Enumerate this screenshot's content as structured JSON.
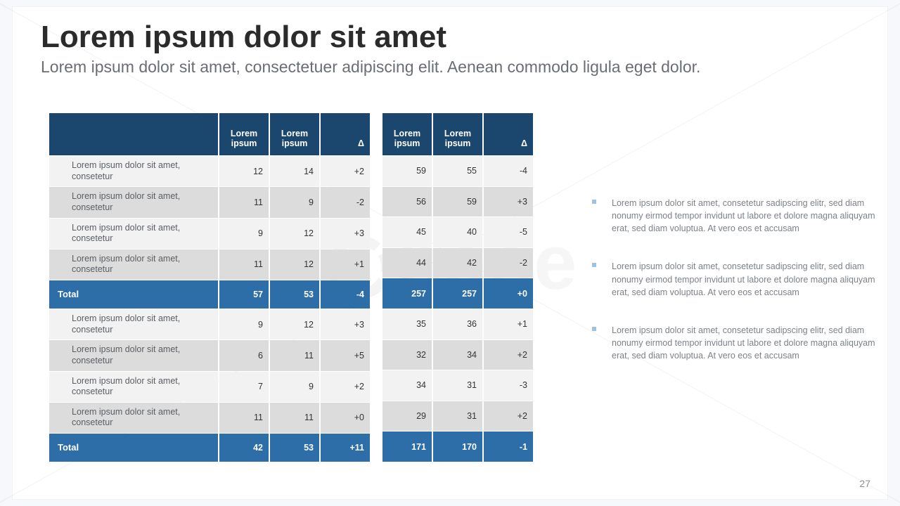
{
  "title": "Lorem ipsum dolor sit amet",
  "subtitle": "Lorem ipsum dolor sit amet, consectetuer adipiscing elit. Aenean commodo ligula eget dolor.",
  "page_number": "27",
  "colors": {
    "header_bg": "#1b476f",
    "total_bg": "#2d6da8",
    "row_light": "#f2f2f2",
    "row_dark": "#dcdcdc",
    "bullet": "#9cc3e3",
    "text_body": "#7d8287"
  },
  "table": {
    "headers_left": [
      "",
      "Lorem ipsum",
      "Lorem ipsum",
      "Δ"
    ],
    "headers_right": [
      "Lorem ipsum",
      "Lorem ipsum",
      "Δ"
    ],
    "row_label": "Lorem ipsum dolor sit amet, consetetur",
    "section1": {
      "rows": [
        {
          "l": [
            12,
            14,
            "+2"
          ],
          "r": [
            59,
            55,
            "-4"
          ]
        },
        {
          "l": [
            11,
            9,
            "-2"
          ],
          "r": [
            56,
            59,
            "+3"
          ]
        },
        {
          "l": [
            9,
            12,
            "+3"
          ],
          "r": [
            45,
            40,
            "-5"
          ]
        },
        {
          "l": [
            11,
            12,
            "+1"
          ],
          "r": [
            44,
            42,
            "-2"
          ]
        }
      ],
      "total_label": "Total",
      "total": {
        "l": [
          57,
          53,
          "-4"
        ],
        "r": [
          257,
          257,
          "+0"
        ]
      }
    },
    "section2": {
      "rows": [
        {
          "l": [
            9,
            12,
            "+3"
          ],
          "r": [
            35,
            36,
            "+1"
          ]
        },
        {
          "l": [
            6,
            11,
            "+5"
          ],
          "r": [
            32,
            34,
            "+2"
          ]
        },
        {
          "l": [
            7,
            9,
            "+2"
          ],
          "r": [
            34,
            31,
            "-3"
          ]
        },
        {
          "l": [
            11,
            11,
            "+0"
          ],
          "r": [
            29,
            31,
            "+2"
          ]
        }
      ],
      "total_label": "Total",
      "total": {
        "l": [
          42,
          53,
          "+11"
        ],
        "r": [
          171,
          170,
          "-1"
        ]
      }
    }
  },
  "side_notes": [
    "Lorem ipsum dolor sit amet, consetetur sadipscing elitr, sed diam nonumy eirmod tempor invidunt ut labore et dolore magna aliquyam erat, sed diam voluptua. At vero eos et accusam",
    "Lorem ipsum dolor sit amet, consetetur sadipscing elitr, sed diam nonumy eirmod tempor invidunt ut labore et dolore magna aliquyam erat, sed diam voluptua. At vero eos et accusam",
    "Lorem ipsum dolor sit amet, consetetur sadipscing elitr, sed diam nonumy eirmod tempor invidunt ut labore et dolore magna aliquyam erat, sed diam voluptua. At vero eos et accusam"
  ],
  "watermark": "base"
}
